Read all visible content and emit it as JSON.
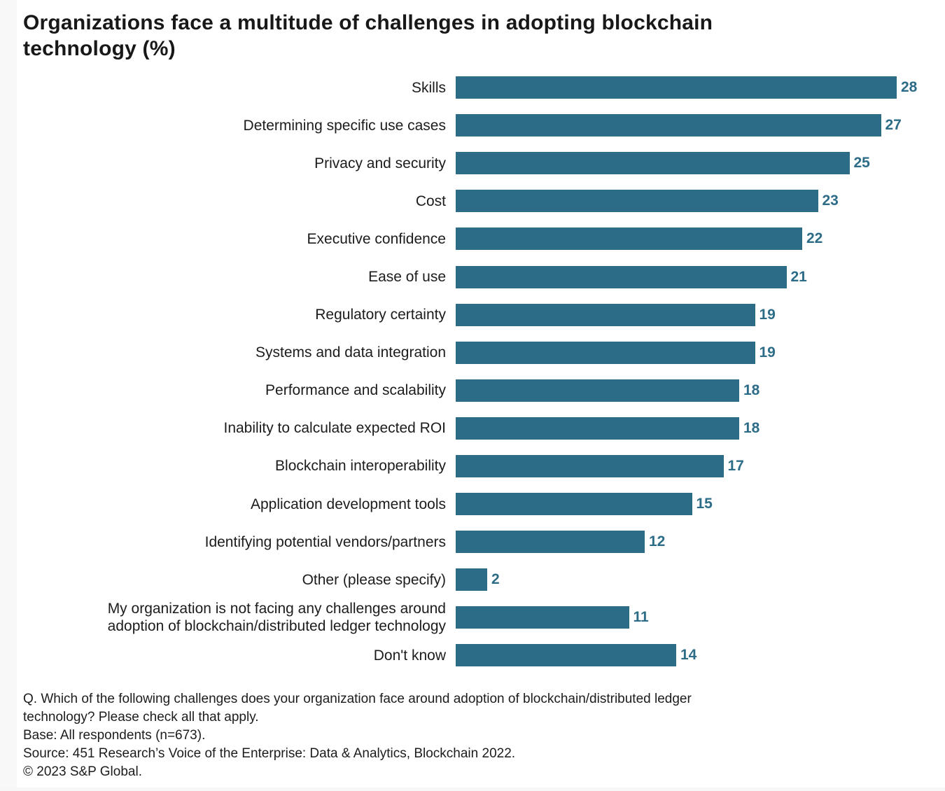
{
  "chart_data": {
    "type": "bar",
    "orientation": "horizontal",
    "title": "Organizations face a multitude of challenges in adopting blockchain technology (%)",
    "categories": [
      "Skills",
      "Determining specific use cases",
      "Privacy and security",
      "Cost",
      "Executive confidence",
      "Ease of use",
      "Regulatory certainty",
      "Systems and data integration",
      "Performance and scalability",
      "Inability to calculate expected ROI",
      "Blockchain interoperability",
      "Application development tools",
      "Identifying potential vendors/partners",
      "Other (please specify)",
      "My organization is not facing any challenges around\nadoption of blockchain/distributed ledger technology",
      "Don't know"
    ],
    "values": [
      28,
      27,
      25,
      23,
      22,
      21,
      19,
      19,
      18,
      18,
      17,
      15,
      12,
      2,
      11,
      14
    ],
    "xlim": [
      0,
      28
    ],
    "grid": false,
    "legend": "none",
    "bar_color": "#2d6c87",
    "value_label_color": "#2d6c87",
    "category_label_color": "#1c1c1c"
  },
  "footnotes": [
    "Q. Which of the following challenges does your organization face around adoption of blockchain/distributed ledger",
    "technology? Please check all that apply.",
    "Base: All respondents (n=673).",
    "Source: 451 Research’s Voice of the Enterprise: Data & Analytics, Blockchain 2022.",
    "© 2023 S&P Global."
  ]
}
